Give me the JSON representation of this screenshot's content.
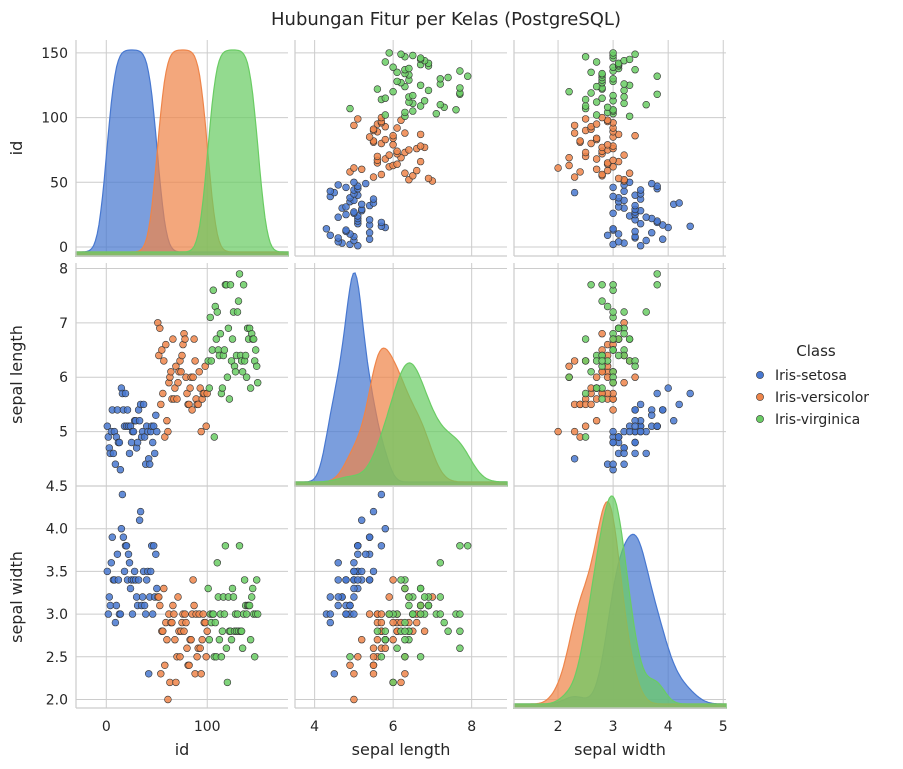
{
  "title": "Hubungan Fitur per Kelas (PostgreSQL)",
  "colors": {
    "setosa": "#4878d0",
    "versicolor": "#ee854a",
    "virginica": "#6acc64",
    "grid": "#cccccc",
    "frame": "#cccccc"
  },
  "legend": {
    "title": "Class",
    "placement": "right",
    "items": [
      {
        "label": "Iris-setosa",
        "color": "#4878d0"
      },
      {
        "label": "Iris-versicolor",
        "color": "#ee854a"
      },
      {
        "label": "Iris-virginica",
        "color": "#6acc64"
      }
    ]
  },
  "chart_data": {
    "type": "scatter",
    "kind": "pairplot",
    "title": "Hubungan Fitur per Kelas (PostgreSQL)",
    "variables": [
      {
        "key": "id",
        "label": "id",
        "lim": [
          -30,
          180
        ],
        "ticks": [
          0,
          50,
          100,
          150
        ],
        "xticks": [
          "0",
          "100"
        ],
        "xtickvals": [
          0,
          100
        ],
        "yticks": [
          "0",
          "50",
          "100",
          "150"
        ]
      },
      {
        "key": "sl",
        "label": "sepal length",
        "lim": [
          3.9,
          8.3
        ],
        "xtickvals": [
          4,
          6,
          8
        ],
        "xticks": [
          "4",
          "6",
          "8"
        ],
        "ytickvals": [
          5,
          6,
          7,
          8
        ],
        "yticks": [
          "5",
          "6",
          "7",
          "8"
        ]
      },
      {
        "key": "sw",
        "label": "sepal width",
        "lim": [
          1.9,
          4.5
        ],
        "xtickvals": [
          2,
          3,
          4,
          5
        ],
        "xticks": [
          "2",
          "3",
          "4",
          "5"
        ],
        "ytickvals": [
          2.0,
          2.5,
          3.0,
          3.5,
          4.0,
          4.5
        ],
        "yticks": [
          "2.0",
          "2.5",
          "3.0",
          "3.5",
          "4.0",
          "4.5"
        ]
      }
    ],
    "grid": true,
    "diagonal": "kde",
    "series": [
      {
        "name": "Iris-setosa",
        "id": [
          1,
          2,
          3,
          4,
          5,
          6,
          7,
          8,
          9,
          10,
          11,
          12,
          13,
          14,
          15,
          16,
          17,
          18,
          19,
          20,
          21,
          22,
          23,
          24,
          25,
          26,
          27,
          28,
          29,
          30,
          31,
          32,
          33,
          34,
          35,
          36,
          37,
          38,
          39,
          40,
          41,
          42,
          43,
          44,
          45,
          46,
          47,
          48,
          49,
          50
        ],
        "sepal_length": [
          5.1,
          4.9,
          4.7,
          4.6,
          5.0,
          5.4,
          4.6,
          5.0,
          4.4,
          4.9,
          5.4,
          4.8,
          4.8,
          4.3,
          5.8,
          5.7,
          5.4,
          5.1,
          5.7,
          5.1,
          5.4,
          5.1,
          4.6,
          5.1,
          4.8,
          5.0,
          5.0,
          5.2,
          5.2,
          4.7,
          4.8,
          5.4,
          5.2,
          5.5,
          4.9,
          5.0,
          5.5,
          4.9,
          4.4,
          5.1,
          5.0,
          4.5,
          4.4,
          5.0,
          5.1,
          4.8,
          5.1,
          4.6,
          5.3,
          5.0
        ],
        "sepal_width": [
          3.5,
          3.0,
          3.2,
          3.1,
          3.6,
          3.9,
          3.4,
          3.4,
          2.9,
          3.1,
          3.7,
          3.4,
          3.0,
          3.0,
          4.0,
          4.4,
          3.9,
          3.5,
          3.8,
          3.8,
          3.4,
          3.7,
          3.6,
          3.3,
          3.4,
          3.0,
          3.4,
          3.5,
          3.4,
          3.2,
          3.1,
          3.4,
          4.1,
          4.2,
          3.1,
          3.2,
          3.5,
          3.1,
          3.0,
          3.4,
          3.5,
          2.3,
          3.2,
          3.5,
          3.8,
          3.0,
          3.8,
          3.2,
          3.7,
          3.3
        ]
      },
      {
        "name": "Iris-versicolor",
        "id": [
          51,
          52,
          53,
          54,
          55,
          56,
          57,
          58,
          59,
          60,
          61,
          62,
          63,
          64,
          65,
          66,
          67,
          68,
          69,
          70,
          71,
          72,
          73,
          74,
          75,
          76,
          77,
          78,
          79,
          80,
          81,
          82,
          83,
          84,
          85,
          86,
          87,
          88,
          89,
          90,
          91,
          92,
          93,
          94,
          95,
          96,
          97,
          98,
          99,
          100
        ],
        "sepal_length": [
          7.0,
          6.4,
          6.9,
          5.5,
          6.5,
          5.7,
          6.3,
          4.9,
          6.6,
          5.2,
          5.0,
          5.9,
          6.0,
          6.1,
          5.6,
          6.7,
          5.6,
          5.8,
          6.2,
          5.6,
          5.9,
          6.1,
          6.3,
          6.1,
          6.4,
          6.6,
          6.8,
          6.7,
          6.0,
          5.7,
          5.5,
          5.5,
          5.8,
          6.0,
          5.4,
          6.0,
          6.7,
          6.3,
          5.6,
          5.5,
          5.5,
          6.1,
          5.8,
          5.0,
          5.6,
          5.7,
          5.7,
          6.2,
          5.1,
          5.7
        ],
        "sepal_width": [
          3.2,
          3.2,
          3.1,
          2.3,
          2.8,
          2.8,
          3.3,
          2.4,
          2.9,
          2.7,
          2.0,
          3.0,
          2.2,
          2.9,
          2.9,
          3.1,
          3.0,
          2.7,
          2.2,
          2.5,
          3.2,
          2.8,
          2.5,
          2.8,
          2.9,
          3.0,
          2.8,
          3.0,
          2.9,
          2.6,
          2.4,
          2.4,
          2.7,
          2.7,
          3.0,
          3.4,
          3.1,
          2.3,
          3.0,
          2.5,
          2.6,
          3.0,
          2.6,
          2.3,
          2.7,
          3.0,
          2.9,
          2.9,
          2.5,
          2.8
        ]
      },
      {
        "name": "Iris-virginica",
        "id": [
          101,
          102,
          103,
          104,
          105,
          106,
          107,
          108,
          109,
          110,
          111,
          112,
          113,
          114,
          115,
          116,
          117,
          118,
          119,
          120,
          121,
          122,
          123,
          124,
          125,
          126,
          127,
          128,
          129,
          130,
          131,
          132,
          133,
          134,
          135,
          136,
          137,
          138,
          139,
          140,
          141,
          142,
          143,
          144,
          145,
          146,
          147,
          148,
          149,
          150
        ],
        "sepal_length": [
          6.3,
          5.8,
          7.1,
          6.3,
          6.5,
          7.6,
          4.9,
          7.3,
          6.7,
          7.2,
          6.5,
          6.4,
          6.8,
          5.7,
          5.8,
          6.4,
          6.5,
          7.7,
          7.7,
          6.0,
          6.9,
          5.6,
          7.7,
          6.3,
          6.7,
          7.2,
          6.2,
          6.1,
          6.4,
          7.2,
          7.4,
          7.9,
          6.4,
          6.3,
          6.1,
          7.7,
          6.3,
          6.4,
          6.0,
          6.9,
          6.7,
          6.9,
          5.8,
          6.8,
          6.7,
          6.7,
          6.3,
          6.5,
          6.2,
          5.9
        ],
        "sepal_width": [
          3.3,
          2.7,
          3.0,
          2.9,
          3.0,
          3.0,
          2.5,
          2.9,
          2.5,
          3.6,
          3.2,
          2.7,
          3.0,
          2.5,
          2.8,
          3.2,
          3.0,
          3.8,
          2.6,
          2.2,
          3.2,
          2.8,
          2.8,
          2.7,
          3.3,
          3.2,
          2.8,
          3.0,
          2.8,
          3.0,
          2.8,
          3.8,
          2.8,
          2.8,
          2.6,
          3.0,
          3.4,
          3.1,
          3.0,
          3.1,
          3.1,
          3.1,
          2.7,
          3.2,
          3.3,
          3.0,
          2.5,
          3.0,
          3.4,
          3.0
        ]
      }
    ]
  }
}
